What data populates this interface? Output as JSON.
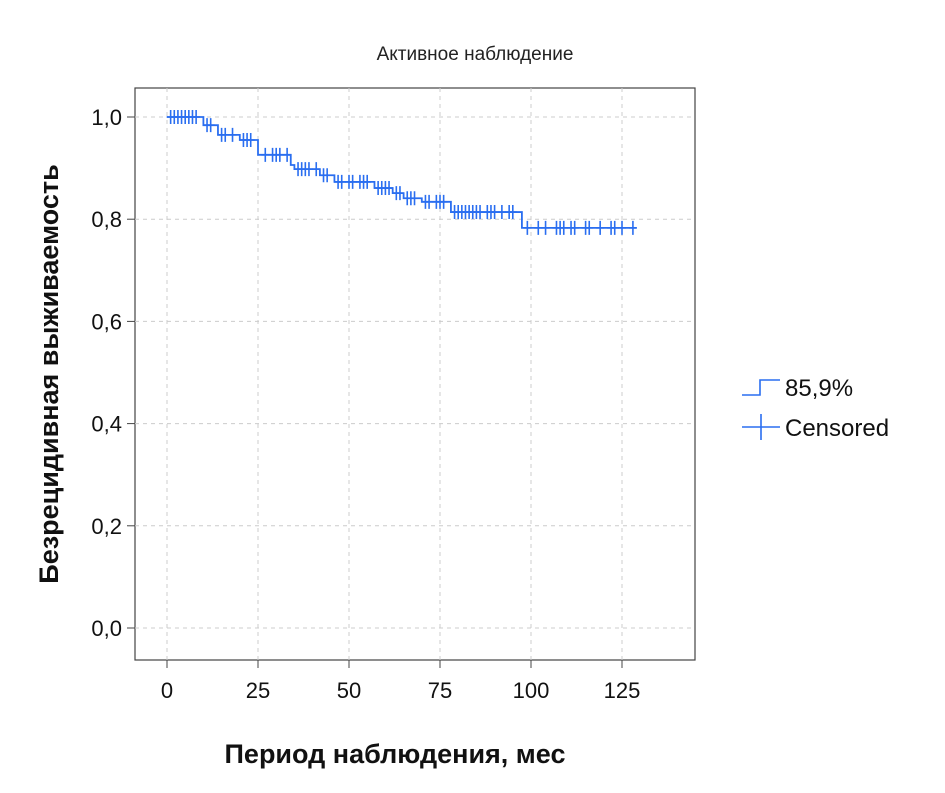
{
  "chart_data": {
    "type": "line",
    "subtype": "kaplan-meier",
    "title": "Активное наблюдение",
    "xlabel": "Период наблюдения, мес",
    "ylabel": "Безрецидивная выживаемость",
    "xlim": [
      -8,
      145
    ],
    "ylim": [
      -0.1,
      1.06
    ],
    "xticks": [
      0,
      25,
      50,
      75,
      100,
      125
    ],
    "xtick_labels": [
      "0",
      "25",
      "50",
      "75",
      "100",
      "125"
    ],
    "yticks": [
      0,
      0.2,
      0.4,
      0.6,
      0.8,
      1.0
    ],
    "ytick_labels": [
      "0,0",
      "0,2",
      "0,4",
      "0,6",
      "0,8",
      "1,0"
    ],
    "grid": true,
    "legend_position": "right",
    "color": "#2a6ef0",
    "series": [
      {
        "name": "85,9%",
        "steps": [
          [
            0,
            1.0
          ],
          [
            10,
            0.984
          ],
          [
            14,
            0.965
          ],
          [
            20,
            0.955
          ],
          [
            25,
            0.926
          ],
          [
            34,
            0.906
          ],
          [
            35,
            0.898
          ],
          [
            42,
            0.886
          ],
          [
            46,
            0.873
          ],
          [
            57,
            0.861
          ],
          [
            62,
            0.851
          ],
          [
            65,
            0.841
          ],
          [
            70,
            0.834
          ],
          [
            78,
            0.814
          ],
          [
            97.5,
            0.783
          ]
        ],
        "end": 129
      }
    ],
    "censored": {
      "name": "Censored",
      "times": [
        1,
        2,
        3,
        4,
        5,
        6,
        7,
        8,
        11,
        12,
        15,
        16,
        18,
        21,
        22,
        23,
        27,
        29,
        30,
        31,
        33,
        36,
        37,
        38,
        39,
        41,
        43,
        44,
        47,
        48,
        50,
        51,
        53,
        54,
        55,
        58,
        59,
        60,
        61,
        63,
        64,
        66,
        67,
        68,
        71,
        72,
        74,
        75,
        76,
        79,
        80,
        81,
        82,
        83,
        84,
        85,
        86,
        88,
        89,
        90,
        92,
        94,
        95,
        99,
        102,
        104,
        107,
        108,
        109,
        111,
        112,
        115,
        116,
        119,
        122,
        123,
        125,
        128
      ]
    }
  }
}
